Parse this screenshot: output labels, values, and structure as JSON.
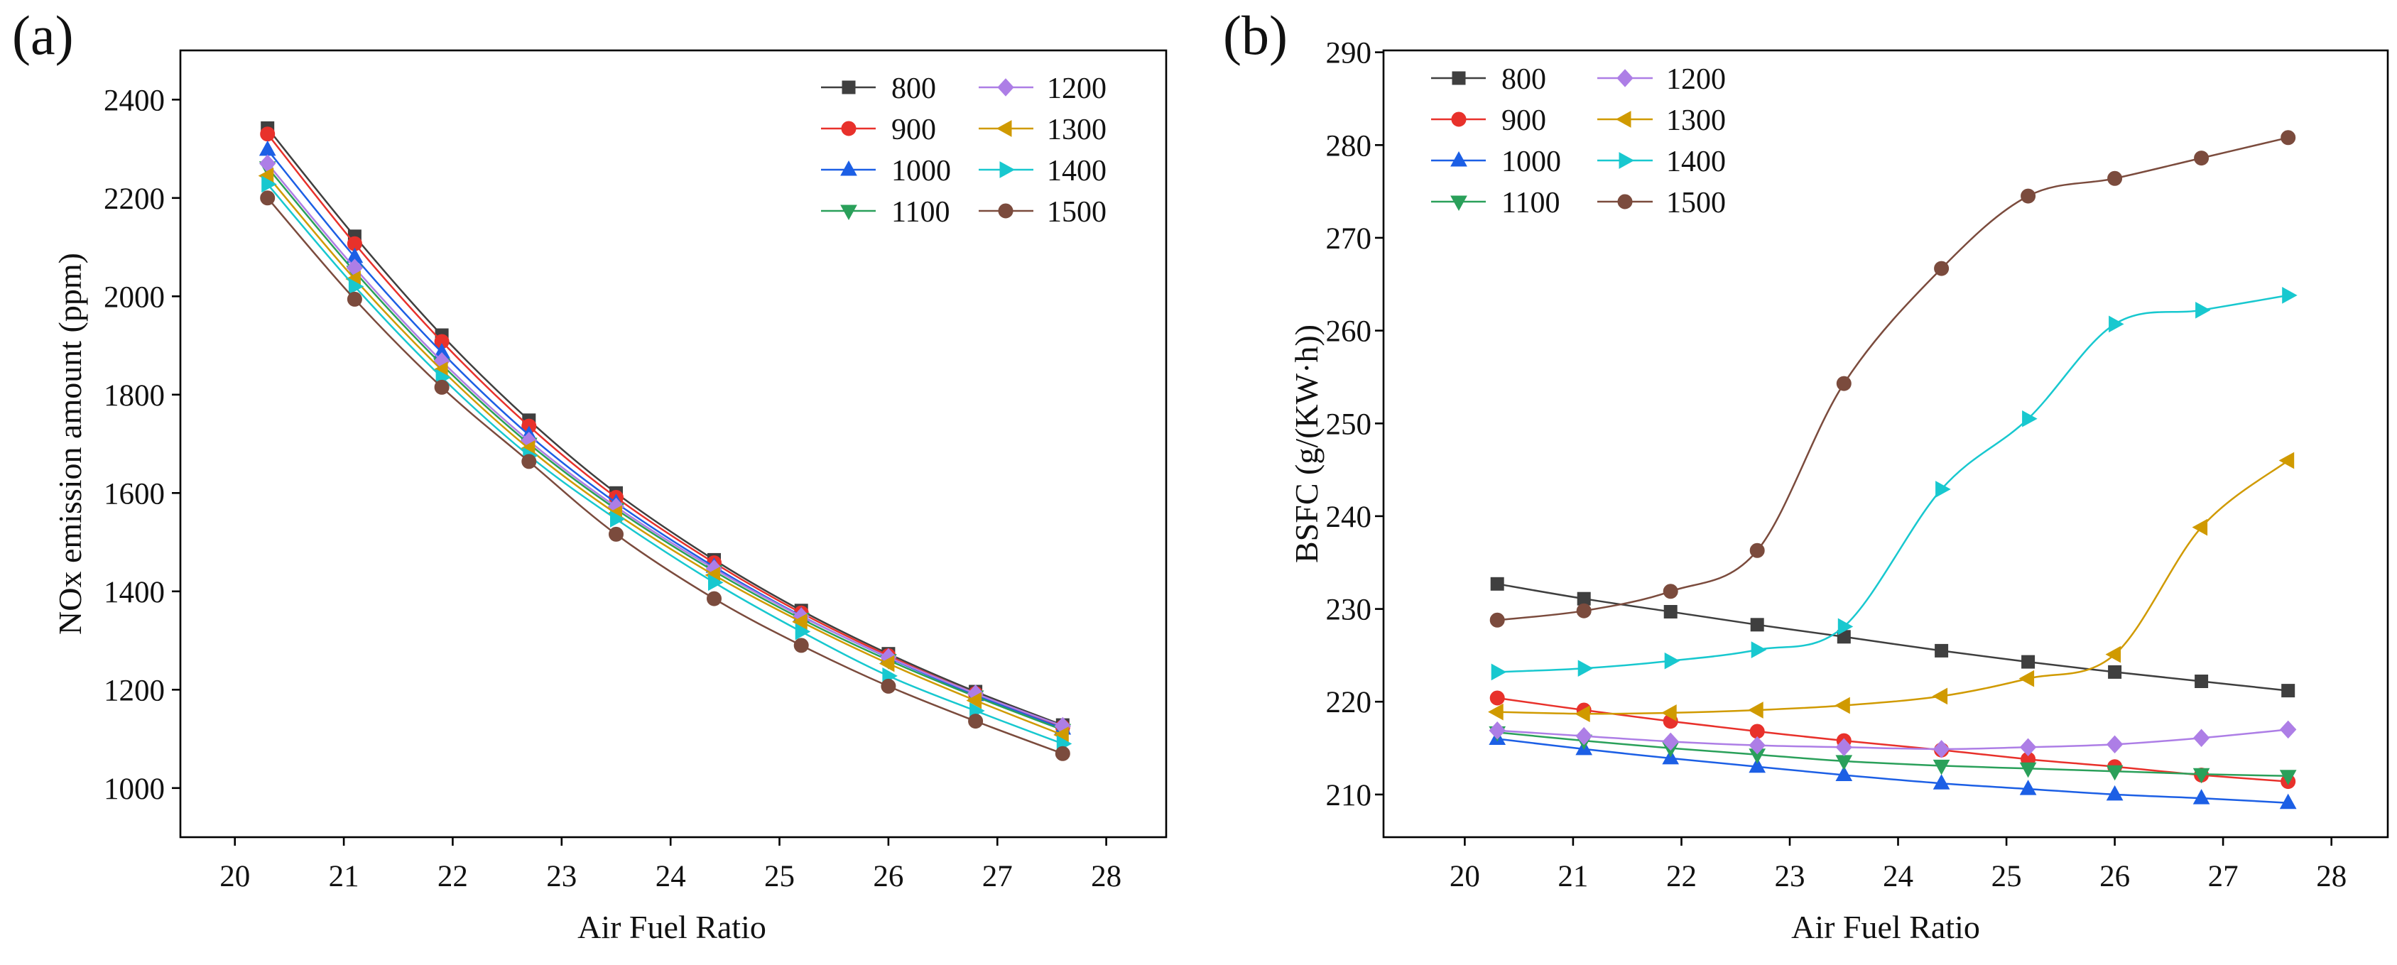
{
  "chart_data": [
    {
      "panel_label": "(a)",
      "type": "line",
      "xlabel": "Air Fuel Ratio",
      "ylabel": "NOx emission amount (ppm)",
      "xlim": [
        19.5,
        28.55
      ],
      "ylim": [
        900,
        2500
      ],
      "x_ticks": [
        20,
        21,
        22,
        23,
        24,
        25,
        26,
        27,
        28
      ],
      "y_ticks": [
        1000,
        1200,
        1400,
        1600,
        1800,
        2000,
        2200,
        2400
      ],
      "grid": false,
      "legend_position": "top-right",
      "x": [
        20.3,
        21.1,
        21.9,
        22.7,
        23.5,
        24.4,
        25.2,
        26.0,
        26.8,
        27.6
      ],
      "series": [
        {
          "name": "800",
          "color": "#3f3f3f",
          "marker": "square",
          "values": [
            2342,
            2122,
            1921,
            1748,
            1600,
            1464,
            1361,
            1273,
            1196,
            1128
          ]
        },
        {
          "name": "900",
          "color": "#e8312b",
          "marker": "circle",
          "values": [
            2330,
            2107,
            1908,
            1736,
            1591,
            1458,
            1356,
            1269,
            1192,
            1124
          ]
        },
        {
          "name": "1000",
          "color": "#1c5fe5",
          "marker": "triangle-up",
          "values": [
            2298,
            2080,
            1886,
            1718,
            1580,
            1450,
            1350,
            1265,
            1189,
            1121
          ]
        },
        {
          "name": "1100",
          "color": "#2aa05a",
          "marker": "triangle-down",
          "values": [
            2262,
            2050,
            1861,
            1700,
            1567,
            1441,
            1344,
            1260,
            1186,
            1118
          ]
        },
        {
          "name": "1200",
          "color": "#ad7ee6",
          "marker": "diamond",
          "values": [
            2270,
            2058,
            1868,
            1706,
            1572,
            1446,
            1349,
            1266,
            1192,
            1126
          ]
        },
        {
          "name": "1300",
          "color": "#d09a00",
          "marker": "triangle-left",
          "values": [
            2245,
            2035,
            1850,
            1690,
            1558,
            1433,
            1338,
            1253,
            1178,
            1108
          ]
        },
        {
          "name": "1400",
          "color": "#18c8cf",
          "marker": "triangle-right",
          "values": [
            2228,
            2020,
            1835,
            1676,
            1547,
            1418,
            1318,
            1228,
            1157,
            1090
          ]
        },
        {
          "name": "1500",
          "color": "#7b4b3d",
          "marker": "circle",
          "values": [
            2200,
            1994,
            1815,
            1664,
            1516,
            1385,
            1290,
            1207,
            1136,
            1070
          ]
        }
      ]
    },
    {
      "panel_label": "(b)",
      "type": "line",
      "xlabel": "Air Fuel Ratio",
      "ylabel": "BSFC (g/(KW·h))",
      "xlim": [
        19.25,
        28.52
      ],
      "ylim": [
        205.4,
        290.2
      ],
      "x_ticks": [
        20,
        21,
        22,
        23,
        24,
        25,
        26,
        27,
        28
      ],
      "y_ticks": [
        210,
        220,
        230,
        240,
        250,
        260,
        270,
        280,
        290
      ],
      "grid": false,
      "legend_position": "top-left",
      "x": [
        20.3,
        21.1,
        21.9,
        22.7,
        23.5,
        24.4,
        25.2,
        26.0,
        26.8,
        27.6
      ],
      "series": [
        {
          "name": "800",
          "color": "#3f3f3f",
          "marker": "square",
          "values": [
            232.7,
            231.1,
            229.7,
            228.3,
            227.0,
            225.5,
            224.3,
            223.2,
            222.2,
            221.2
          ]
        },
        {
          "name": "900",
          "color": "#e8312b",
          "marker": "circle",
          "values": [
            220.4,
            219.1,
            217.9,
            216.8,
            215.8,
            214.8,
            213.8,
            213.0,
            212.1,
            211.4
          ]
        },
        {
          "name": "1000",
          "color": "#1c5fe5",
          "marker": "triangle-up",
          "values": [
            216.0,
            214.9,
            213.9,
            213.0,
            212.1,
            211.2,
            210.6,
            210.0,
            209.6,
            209.1
          ]
        },
        {
          "name": "1100",
          "color": "#2aa05a",
          "marker": "triangle-down",
          "values": [
            216.7,
            215.8,
            215.0,
            214.3,
            213.6,
            213.1,
            212.8,
            212.5,
            212.2,
            212.0
          ]
        },
        {
          "name": "1200",
          "color": "#ad7ee6",
          "marker": "diamond",
          "values": [
            216.9,
            216.3,
            215.7,
            215.3,
            215.1,
            214.9,
            215.1,
            215.4,
            216.1,
            217.0
          ]
        },
        {
          "name": "1300",
          "color": "#d09a00",
          "marker": "triangle-left",
          "values": [
            218.9,
            218.7,
            218.8,
            219.1,
            219.6,
            220.6,
            222.5,
            225.1,
            238.8,
            246.0
          ]
        },
        {
          "name": "1400",
          "color": "#18c8cf",
          "marker": "triangle-right",
          "values": [
            223.2,
            223.6,
            224.4,
            225.6,
            228.1,
            242.9,
            250.5,
            260.7,
            262.2,
            263.8
          ]
        },
        {
          "name": "1500",
          "color": "#7b4b3d",
          "marker": "circle",
          "values": [
            228.8,
            229.8,
            231.9,
            236.3,
            254.3,
            266.7,
            274.5,
            276.4,
            278.6,
            280.8
          ]
        }
      ]
    }
  ]
}
